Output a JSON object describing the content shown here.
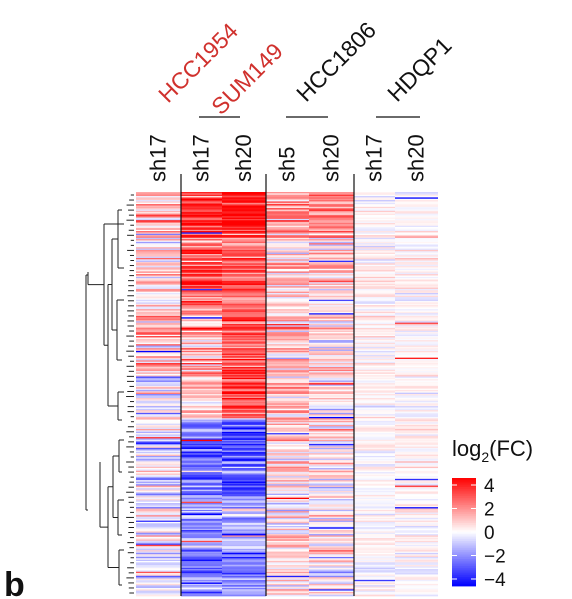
{
  "panel_label": "b",
  "chart_data": {
    "type": "heatmap",
    "title": "",
    "columns": [
      {
        "sample": "sh17",
        "cell_line": "HCC1954",
        "group_color": "#d0312d"
      },
      {
        "sample": "sh17",
        "cell_line": "SUM149",
        "group_color": "#d0312d"
      },
      {
        "sample": "sh20",
        "cell_line": "SUM149",
        "group_color": "#d0312d"
      },
      {
        "sample": "sh5",
        "cell_line": "HCC1806",
        "group_color": "#111111"
      },
      {
        "sample": "sh20",
        "cell_line": "HCC1806",
        "group_color": "#111111"
      },
      {
        "sample": "sh17",
        "cell_line": "HDQP1",
        "group_color": "#111111"
      },
      {
        "sample": "sh20",
        "cell_line": "HDQP1",
        "group_color": "#111111"
      }
    ],
    "groups": [
      {
        "name": "HCC1954",
        "color": "#d0312d"
      },
      {
        "name": "SUM149",
        "color": "#d0312d"
      },
      {
        "name": "HCC1806",
        "color": "#111111"
      },
      {
        "name": "HDQP1",
        "color": "#111111"
      }
    ],
    "rows": 300,
    "row_dendrogram": true,
    "cluster_profile": [
      {
        "upto": 0.1,
        "means": [
          0.8,
          3.3,
          4.0,
          1.6,
          1.8,
          0.1,
          0.1
        ]
      },
      {
        "upto": 0.28,
        "means": [
          0.3,
          2.6,
          2.4,
          0.6,
          0.4,
          0.0,
          0.1
        ]
      },
      {
        "upto": 0.45,
        "means": [
          0.9,
          1.0,
          2.7,
          0.8,
          0.5,
          0.1,
          0.0
        ]
      },
      {
        "upto": 0.56,
        "means": [
          -0.6,
          0.4,
          2.6,
          0.7,
          0.3,
          0.0,
          0.0
        ]
      },
      {
        "upto": 0.75,
        "means": [
          -0.4,
          -2.2,
          -2.7,
          0.5,
          0.2,
          0.0,
          0.1
        ]
      },
      {
        "upto": 0.88,
        "means": [
          -0.1,
          -1.6,
          -1.2,
          0.3,
          0.2,
          0.0,
          0.0
        ]
      },
      {
        "upto": 1.0,
        "means": [
          -0.5,
          -2.2,
          -1.6,
          0.4,
          0.2,
          0.0,
          0.0
        ]
      }
    ],
    "colorscale": {
      "min": -4,
      "max": 4,
      "colors": [
        "#0000ff",
        "#ffffff",
        "#ff0000"
      ]
    },
    "legend": {
      "title_prefix": "log",
      "title_sub": "2",
      "title_suffix": "(FC)",
      "ticks": [
        "4",
        "2",
        "0",
        "−2",
        "−4"
      ],
      "placement": "bottom-right"
    }
  }
}
